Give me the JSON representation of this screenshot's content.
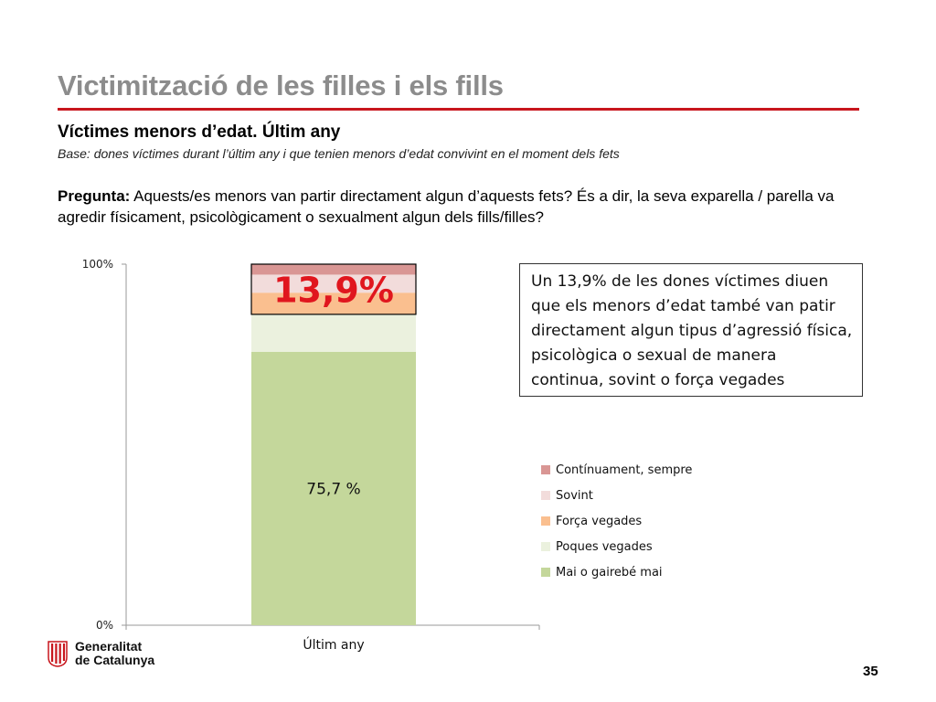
{
  "header": {
    "title": "Victimització de les filles i els fills",
    "subtitle": "Víctimes menors d’edat. Últim any",
    "base_note": "Base: dones víctimes durant l’últim any i que tenien menors d’edat convivint en el moment dels fets",
    "question_label": "Pregunta:",
    "question_text": " Aquests/es menors van partir directament algun d’aquests fets? És a dir, la seva exparella / parella va agredir físicament, psicològicament o sexualment algun dels fills/filles?"
  },
  "callout": {
    "text": "Un 13,9% de les dones víctimes diuen que els menors d’edat també van patir directament algun tipus d’agressió física, psicològica o sexual de manera continua, sovint o força vegades"
  },
  "chart_data": {
    "type": "bar",
    "stacked": true,
    "categories": [
      "Últim any"
    ],
    "ylim": [
      0,
      100
    ],
    "y_ticks": [
      "0%",
      "100%"
    ],
    "series": [
      {
        "name": "Mai o gairebé mai",
        "values": [
          75.7
        ],
        "color": "#c4d79b"
      },
      {
        "name": "Poques vegades",
        "values": [
          10.4
        ],
        "color": "#ebf1de"
      },
      {
        "name": "Força vegades",
        "values": [
          6.0
        ],
        "color": "#fabf8f"
      },
      {
        "name": "Sovint",
        "values": [
          5.0
        ],
        "color": "#f2dcdb"
      },
      {
        "name": "Contínuament, sempre",
        "values": [
          2.9
        ],
        "color": "#d99694"
      }
    ],
    "data_labels": [
      "75,7 %",
      "13,9%"
    ],
    "highlight_color": "#e0161e"
  },
  "legend": {
    "items": [
      {
        "label": "Contínuament, sempre",
        "color": "#d99694"
      },
      {
        "label": "Sovint",
        "color": "#f2dcdb"
      },
      {
        "label": "Força vegades",
        "color": "#fabf8f"
      },
      {
        "label": "Poques vegades",
        "color": "#ebf1de"
      },
      {
        "label": "Mai o gairebé mai",
        "color": "#c4d79b"
      }
    ]
  },
  "footer": {
    "logo_line1": "Generalitat",
    "logo_line2": "de Catalunya",
    "page_number": "35"
  }
}
